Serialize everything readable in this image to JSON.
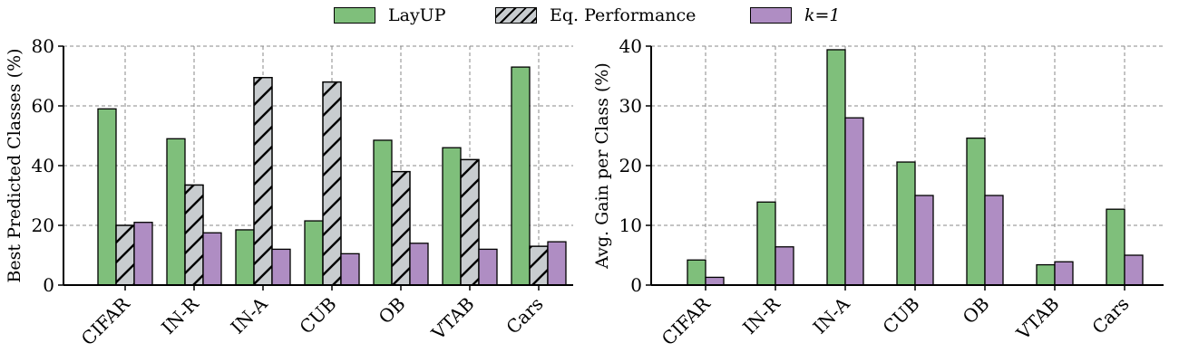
{
  "legend": {
    "items": [
      {
        "label": "LayUP",
        "color": "#7fbf7b",
        "hatch": false
      },
      {
        "label": "Eq. Performance",
        "color": "#c8cccf",
        "hatch": true
      },
      {
        "label": "k=1",
        "color": "#af8dc3",
        "hatch": false
      }
    ]
  },
  "chart_data": [
    {
      "type": "bar",
      "categories": [
        "CIFAR",
        "IN-R",
        "IN-A",
        "CUB",
        "OB",
        "VTAB",
        "Cars"
      ],
      "series": [
        {
          "name": "LayUP",
          "color": "#7fbf7b",
          "hatch": false,
          "values": [
            59,
            49,
            18.5,
            21.5,
            48.5,
            46,
            73
          ]
        },
        {
          "name": "Eq. Performance",
          "color": "#c8cccf",
          "hatch": true,
          "values": [
            20,
            33.5,
            69.5,
            68,
            38,
            42,
            13
          ]
        },
        {
          "name": "k=1",
          "color": "#af8dc3",
          "hatch": false,
          "values": [
            21,
            17.5,
            12,
            10.5,
            14,
            12,
            14.5
          ]
        }
      ],
      "ylabel": "Best Predicted Classes (%)",
      "ylim": [
        0,
        80
      ],
      "yticks": [
        0,
        20,
        40,
        60,
        80
      ],
      "grid": true
    },
    {
      "type": "bar",
      "categories": [
        "CIFAR",
        "IN-R",
        "IN-A",
        "CUB",
        "OB",
        "VTAB",
        "Cars"
      ],
      "series": [
        {
          "name": "LayUP",
          "color": "#7fbf7b",
          "hatch": false,
          "values": [
            4.2,
            13.9,
            39.4,
            20.6,
            24.6,
            3.4,
            12.7
          ]
        },
        {
          "name": "k=1",
          "color": "#af8dc3",
          "hatch": false,
          "values": [
            1.3,
            6.4,
            28,
            15,
            15,
            3.9,
            5
          ]
        }
      ],
      "ylabel": "Avg. Gain per Class (%)",
      "ylim": [
        0,
        40
      ],
      "yticks": [
        0,
        10,
        20,
        30,
        40
      ],
      "grid": true
    }
  ]
}
